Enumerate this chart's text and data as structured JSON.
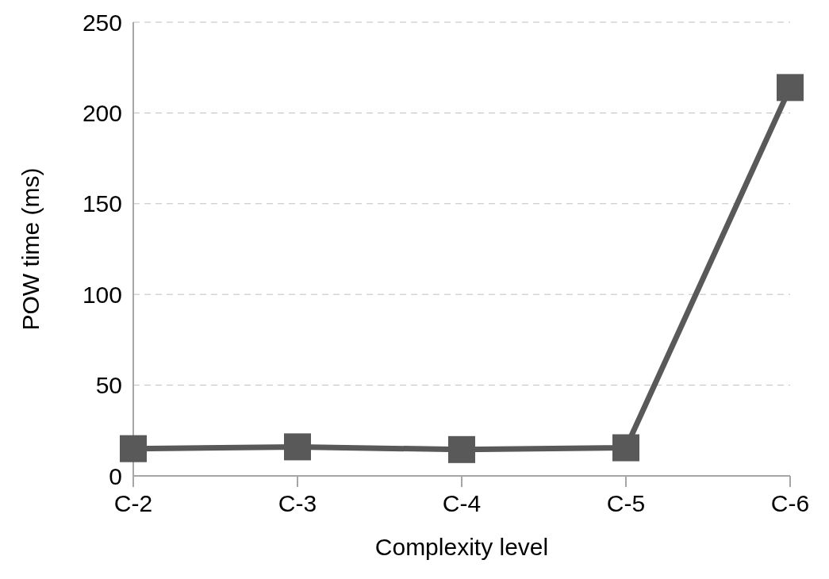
{
  "chart_data": {
    "type": "line",
    "xlabel": "Complexity level",
    "ylabel": "POW time (ms)",
    "categories": [
      "C-2",
      "C-3",
      "C-4",
      "C-5",
      "C-6"
    ],
    "series": [
      {
        "color": "#595959",
        "values": [
          15,
          16,
          14.5,
          15.5,
          214
        ]
      }
    ],
    "ylim": [
      0,
      250
    ],
    "yticks": [
      0,
      50,
      100,
      150,
      200,
      250
    ],
    "grid": "y",
    "marker": "square",
    "line_style": "solid"
  }
}
